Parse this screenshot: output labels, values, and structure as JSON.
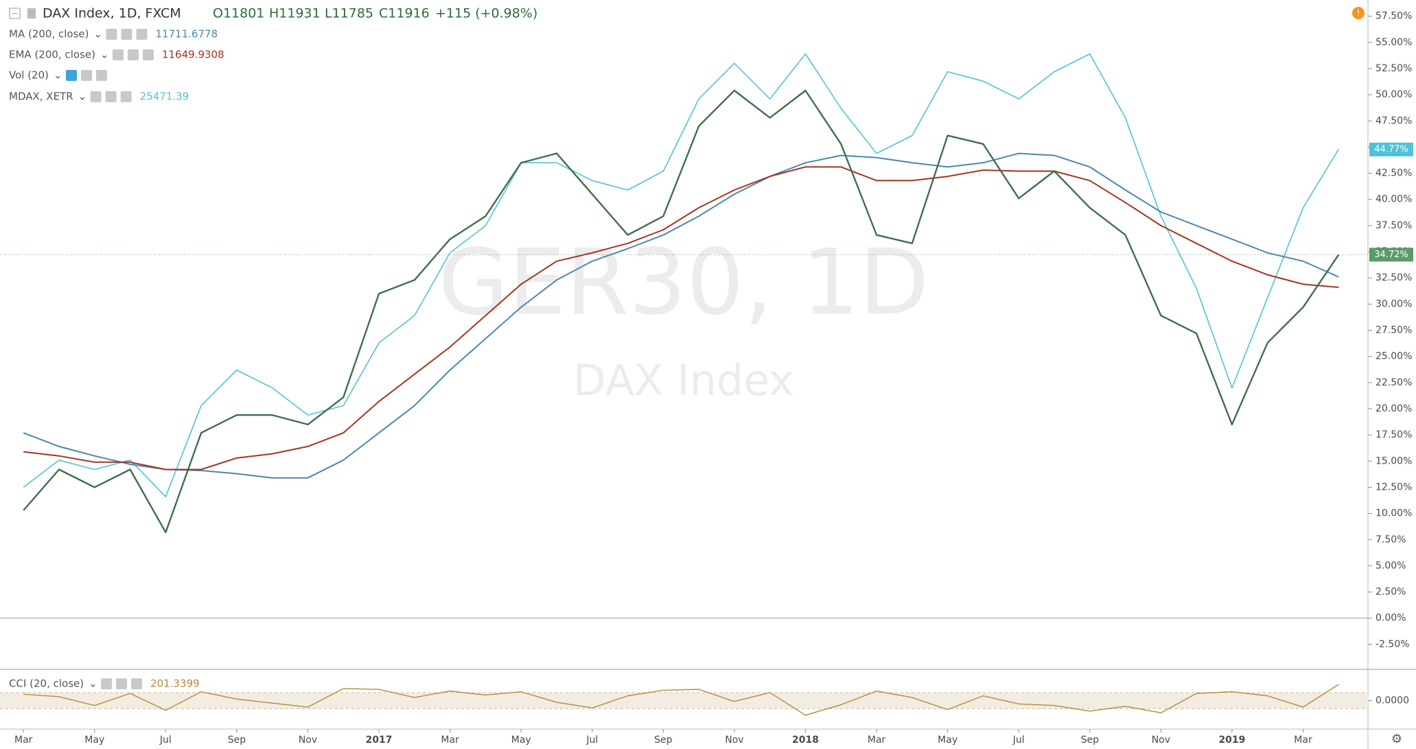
{
  "header": {
    "symbol": "DAX Index, 1D, FXCM",
    "open": "O11801",
    "high": "H11931",
    "low": "L11785",
    "close": "C11916",
    "change": "+115 (+0.98%)"
  },
  "indicators_off": [
    "Vol (20)"
  ],
  "chart_data": [
    {
      "type": "line",
      "watermark": "GER30, 1D",
      "watermark_sub": "DAX Index",
      "grid": false,
      "x": [
        "2016-03",
        "2016-04",
        "2016-05",
        "2016-06",
        "2016-07",
        "2016-08",
        "2016-09",
        "2016-10",
        "2016-11",
        "2016-12",
        "2017-01",
        "2017-02",
        "2017-03",
        "2017-04",
        "2017-05",
        "2017-06",
        "2017-07",
        "2017-08",
        "2017-09",
        "2017-10",
        "2017-11",
        "2017-12",
        "2018-01",
        "2018-02",
        "2018-03",
        "2018-04",
        "2018-05",
        "2018-06",
        "2018-07",
        "2018-08",
        "2018-09",
        "2018-10",
        "2018-11",
        "2018-12",
        "2019-01",
        "2019-02",
        "2019-03",
        "2019-04"
      ],
      "xticks": [
        {
          "value": "2016-03",
          "label": "Mar"
        },
        {
          "value": "2016-05",
          "label": "May"
        },
        {
          "value": "2016-07",
          "label": "Jul"
        },
        {
          "value": "2016-09",
          "label": "Sep"
        },
        {
          "value": "2016-11",
          "label": "Nov"
        },
        {
          "value": "2017-01",
          "label": "2017"
        },
        {
          "value": "2017-03",
          "label": "Mar"
        },
        {
          "value": "2017-05",
          "label": "May"
        },
        {
          "value": "2017-07",
          "label": "Jul"
        },
        {
          "value": "2017-09",
          "label": "Sep"
        },
        {
          "value": "2017-11",
          "label": "Nov"
        },
        {
          "value": "2018-01",
          "label": "2018"
        },
        {
          "value": "2018-03",
          "label": "Mar"
        },
        {
          "value": "2018-05",
          "label": "May"
        },
        {
          "value": "2018-07",
          "label": "Jul"
        },
        {
          "value": "2018-09",
          "label": "Sep"
        },
        {
          "value": "2018-11",
          "label": "Nov"
        },
        {
          "value": "2019-01",
          "label": "2019"
        },
        {
          "value": "2019-03",
          "label": "Mar"
        }
      ],
      "ylim": [
        -4.9,
        59.05
      ],
      "yticks": [
        {
          "value": -2.5,
          "label": "-2.50%"
        },
        {
          "value": 0,
          "label": "0.00%"
        },
        {
          "value": 2.5,
          "label": "2.50%"
        },
        {
          "value": 5,
          "label": "5.00%"
        },
        {
          "value": 7.5,
          "label": "7.50%"
        },
        {
          "value": 10,
          "label": "10.00%"
        },
        {
          "value": 12.5,
          "label": "12.50%"
        },
        {
          "value": 15,
          "label": "15.00%"
        },
        {
          "value": 17.5,
          "label": "17.50%"
        },
        {
          "value": 20,
          "label": "20.00%"
        },
        {
          "value": 22.5,
          "label": "22.50%"
        },
        {
          "value": 25,
          "label": "25.00%"
        },
        {
          "value": 27.5,
          "label": "27.50%"
        },
        {
          "value": 30,
          "label": "30.00%"
        },
        {
          "value": 32.5,
          "label": "32.50%"
        },
        {
          "value": 35,
          "label": "35.00%"
        },
        {
          "value": 37.5,
          "label": "37.50%"
        },
        {
          "value": 40,
          "label": "40.00%"
        },
        {
          "value": 42.5,
          "label": "42.50%"
        },
        {
          "value": 45,
          "label": "45.00%"
        },
        {
          "value": 47.5,
          "label": "47.50%"
        },
        {
          "value": 50,
          "label": "50.00%"
        },
        {
          "value": 52.5,
          "label": "52.50%"
        },
        {
          "value": 55,
          "label": "55.00%"
        },
        {
          "value": 57.5,
          "label": "57.50%"
        }
      ],
      "series": [
        {
          "name": "MDAX, XETR",
          "legend_value": "25471.39",
          "color": "#4fc3d6",
          "width": 1.6,
          "values": [
            12.5,
            15.1,
            14.2,
            15.1,
            11.6,
            20.3,
            23.7,
            22.0,
            19.4,
            20.3,
            26.3,
            28.9,
            34.9,
            37.5,
            43.5,
            43.5,
            41.8,
            40.9,
            42.7,
            49.6,
            53.0,
            49.6,
            53.9,
            48.7,
            44.4,
            46.1,
            52.2,
            51.3,
            49.6,
            52.2,
            53.9,
            47.8,
            38.4,
            31.5,
            22.0,
            30.6,
            39.2,
            44.8
          ],
          "tag": {
            "value": 44.77,
            "label": "44.77%"
          }
        },
        {
          "name": "MA (200, close)",
          "legend_value": "11711.6778",
          "color": "#4a87b0",
          "width": 2,
          "values": [
            17.7,
            16.4,
            15.5,
            14.7,
            14.2,
            14.1,
            13.8,
            13.4,
            13.4,
            15.1,
            17.7,
            20.3,
            23.7,
            26.7,
            29.7,
            32.3,
            34.1,
            35.3,
            36.6,
            38.4,
            40.5,
            42.2,
            43.5,
            44.2,
            44.0,
            43.5,
            43.1,
            43.5,
            44.4,
            44.2,
            43.1,
            40.9,
            38.8,
            37.5,
            36.2,
            34.9,
            34.1,
            32.6
          ]
        },
        {
          "name": "EMA (200, close)",
          "legend_value": "11649.9308",
          "color": "#a8321e",
          "width": 2,
          "values": [
            15.9,
            15.5,
            14.9,
            14.9,
            14.2,
            14.2,
            15.3,
            15.7,
            16.4,
            17.7,
            20.7,
            23.3,
            25.9,
            28.9,
            31.9,
            34.1,
            34.9,
            35.8,
            37.1,
            39.2,
            40.9,
            42.2,
            43.1,
            43.1,
            41.8,
            41.8,
            42.2,
            42.8,
            42.7,
            42.7,
            41.8,
            39.7,
            37.5,
            35.8,
            34.1,
            32.8,
            31.9,
            31.6
          ]
        },
        {
          "name": "DAX Index, 1D, FXCM",
          "color": "#3e6e4c",
          "width": 2.4,
          "values": [
            10.3,
            14.2,
            12.5,
            14.2,
            8.2,
            17.7,
            19.4,
            19.4,
            18.5,
            21.1,
            31.0,
            32.3,
            36.2,
            38.4,
            43.5,
            44.4,
            40.5,
            36.6,
            38.4,
            47.0,
            50.4,
            47.8,
            50.4,
            45.3,
            36.6,
            35.8,
            46.1,
            45.3,
            40.1,
            42.7,
            39.2,
            36.6,
            28.9,
            27.2,
            18.5,
            26.3,
            29.7,
            34.72
          ],
          "tag": {
            "value": 34.72,
            "label": "34.72%"
          }
        }
      ]
    },
    {
      "type": "line",
      "ylim": [
        -353,
        388
      ],
      "yticks": [
        {
          "value": 0,
          "label": "0.0000"
        }
      ],
      "band": [
        -100,
        100
      ],
      "series": [
        {
          "name": "CCI (20, close)",
          "legend_value": "201.3399",
          "color": "#b58a3a",
          "width": 1.4,
          "values": [
            80,
            50,
            -60,
            90,
            -120,
            110,
            20,
            -30,
            -80,
            150,
            140,
            40,
            120,
            70,
            110,
            -20,
            -90,
            60,
            130,
            140,
            -10,
            100,
            -180,
            -50,
            120,
            40,
            -110,
            60,
            -40,
            -60,
            -130,
            -70,
            -150,
            90,
            110,
            60,
            -80,
            201.34
          ]
        }
      ]
    }
  ]
}
